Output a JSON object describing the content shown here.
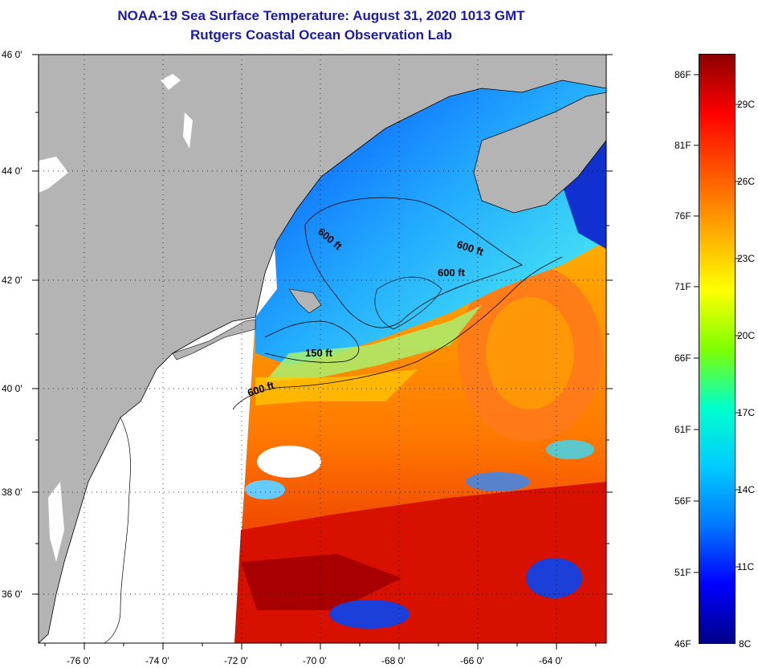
{
  "title": "NOAA-19 Sea Surface Temperature:  August 31, 2020 1013 GMT",
  "subtitle": "Rutgers Coastal Ocean Observation Lab",
  "lat_labels": [
    "46 0'",
    "44 0'",
    "42 0'",
    "40 0'",
    "38 0'",
    "36 0'"
  ],
  "lon_labels": [
    "-76 0'",
    "-74 0'",
    "-72 0'",
    "-70 0'",
    "-68 0'",
    "-66 0'",
    "-64 0'"
  ],
  "contour_labels": [
    "600 ft",
    "600 ft",
    "600 ft",
    "150 ft",
    "600 ft"
  ],
  "colorbar": {
    "fahrenheit": [
      "86F",
      "81F",
      "76F",
      "71F",
      "66F",
      "61F",
      "56F",
      "51F",
      "46F"
    ],
    "celsius": [
      "29C",
      "26C",
      "23C",
      "20C",
      "17C",
      "14C",
      "11C",
      "8C"
    ],
    "range_f": [
      46,
      88
    ],
    "colors": [
      "#00008b",
      "#0000ff",
      "#0077ff",
      "#00ccff",
      "#00ffcc",
      "#7fff00",
      "#ffff00",
      "#ffaa00",
      "#ff5500",
      "#ff0000",
      "#8b0000"
    ]
  },
  "colors": {
    "land": "#b4b4b4",
    "no_data": "#ffffff",
    "title": "#1a1aa6"
  }
}
